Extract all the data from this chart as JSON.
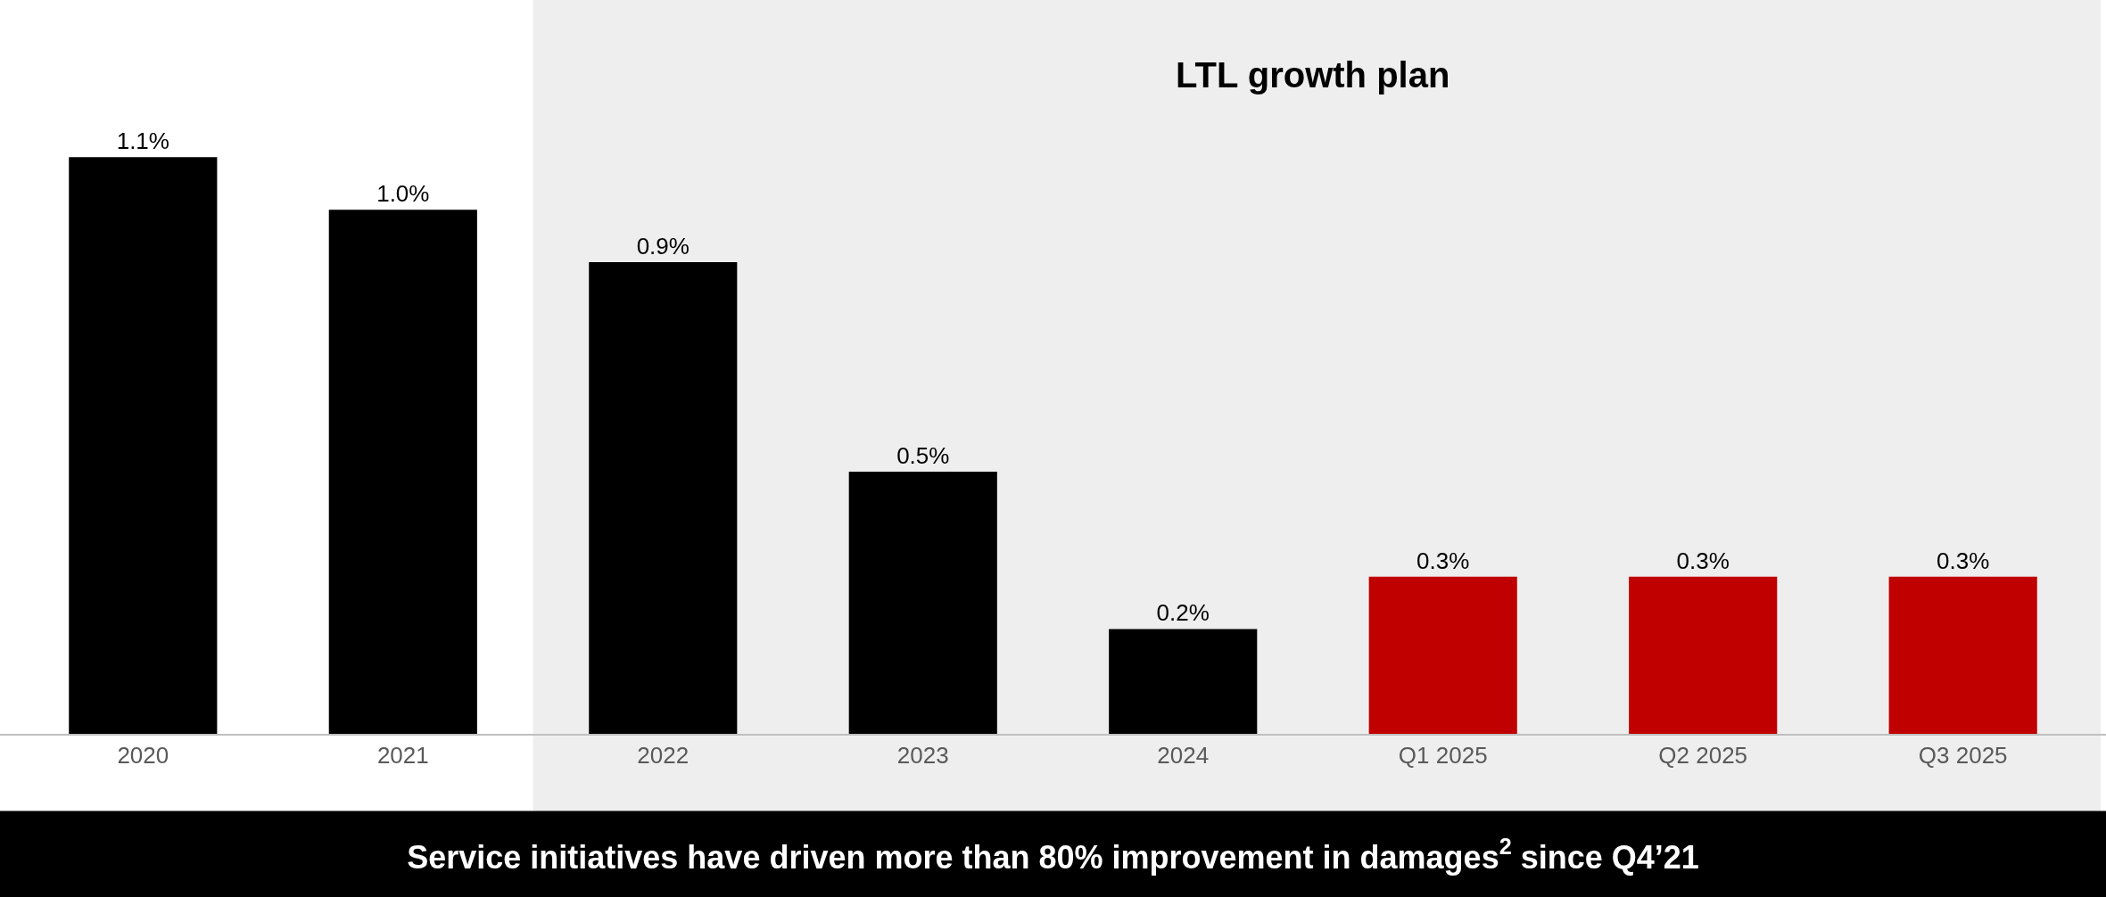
{
  "chart_data": {
    "type": "bar",
    "categories": [
      "2020",
      "2021",
      "2022",
      "2023",
      "2024",
      "Q1 2025",
      "Q2 2025",
      "Q3 2025"
    ],
    "values": [
      1.1,
      1.0,
      0.9,
      0.5,
      0.2,
      0.3,
      0.3,
      0.3
    ],
    "colors": [
      "#000000",
      "#000000",
      "#000000",
      "#000000",
      "#000000",
      "#c00000",
      "#c00000",
      "#c00000"
    ],
    "value_labels": [
      "1.1%",
      "1.0%",
      "0.9%",
      "0.5%",
      "0.2%",
      "0.3%",
      "0.3%",
      "0.3%"
    ],
    "ylim": [
      0,
      1.4
    ],
    "tick_labels": "x",
    "bands": [
      {
        "axis": "x",
        "from": "2022",
        "to": "Q3 2025",
        "label": "LTL growth plan",
        "color": "#eeeeee"
      }
    ],
    "annotations": [
      "Service initiatives have driven more than 80% improvement in damages$^{2}$ since Q4’21"
    ],
    "grid": false,
    "legend": false
  }
}
